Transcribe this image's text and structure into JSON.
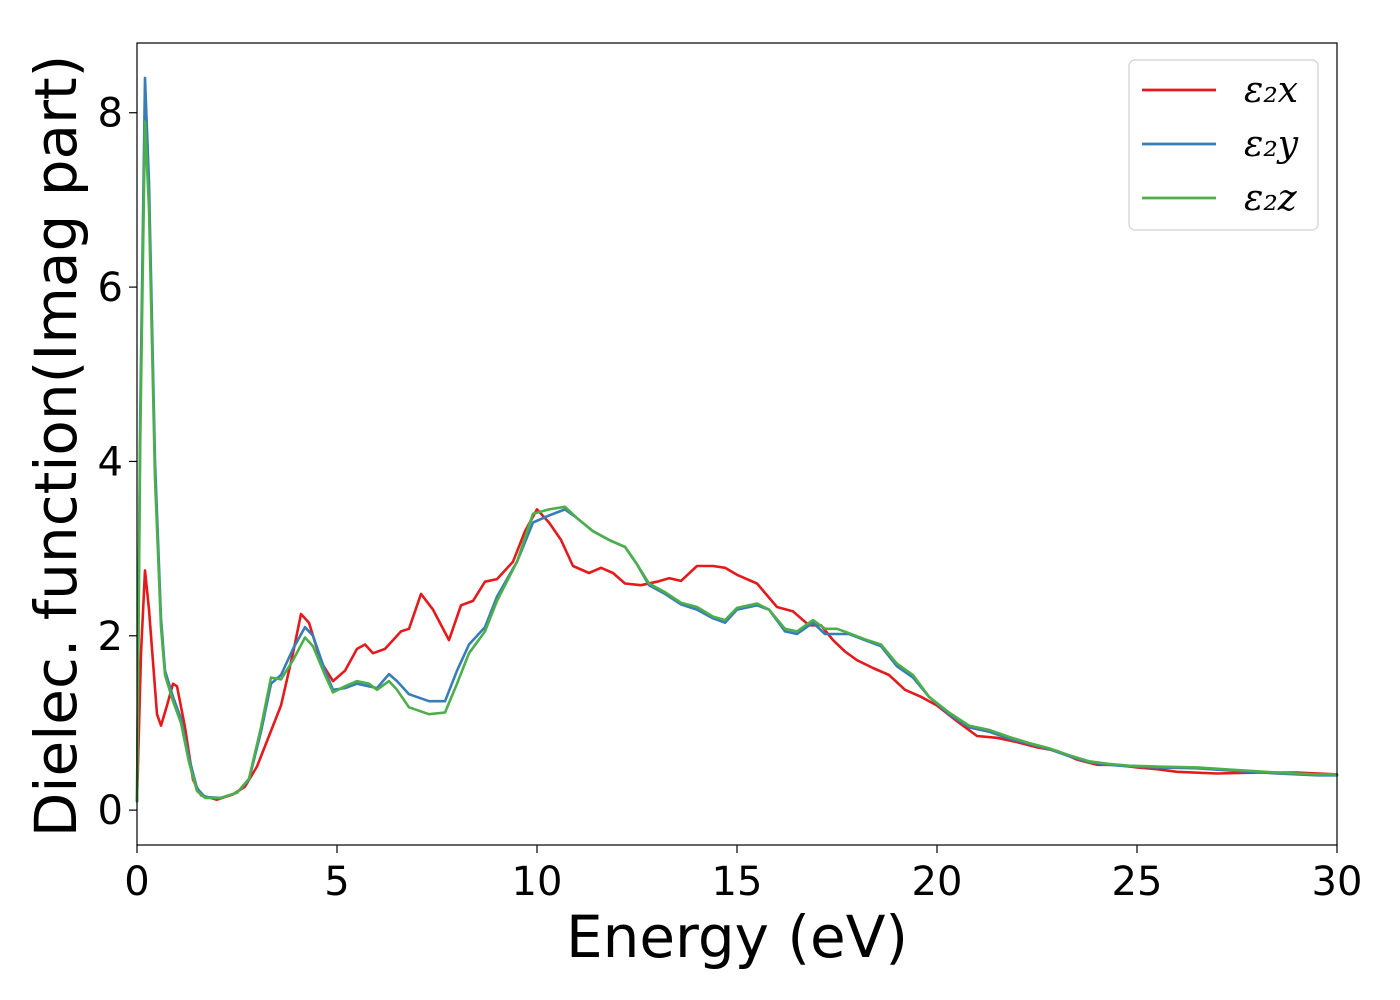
{
  "chart_data": {
    "type": "line",
    "xlabel": "Energy (eV)",
    "ylabel": "Dielec. function(Imag part)",
    "xlim": [
      0,
      30
    ],
    "ylim": [
      -0.4,
      8.8
    ],
    "xticks": [
      "0",
      "5",
      "10",
      "15",
      "20",
      "25",
      "30"
    ],
    "yticks": [
      "0",
      "2",
      "4",
      "6",
      "8"
    ],
    "grid": false,
    "legend_position": "top-right",
    "series": [
      {
        "name": "ε₂x",
        "color": "#e41a1c",
        "points": [
          [
            0,
            0.1
          ],
          [
            0.1,
            1.8
          ],
          [
            0.2,
            2.75
          ],
          [
            0.3,
            2.3
          ],
          [
            0.5,
            1.1
          ],
          [
            0.6,
            0.97
          ],
          [
            0.75,
            1.2
          ],
          [
            0.9,
            1.45
          ],
          [
            1.0,
            1.42
          ],
          [
            1.2,
            0.95
          ],
          [
            1.4,
            0.35
          ],
          [
            1.6,
            0.17
          ],
          [
            2.0,
            0.12
          ],
          [
            2.4,
            0.18
          ],
          [
            2.7,
            0.27
          ],
          [
            3.0,
            0.5
          ],
          [
            3.3,
            0.85
          ],
          [
            3.6,
            1.2
          ],
          [
            3.9,
            1.8
          ],
          [
            4.1,
            2.25
          ],
          [
            4.3,
            2.15
          ],
          [
            4.6,
            1.7
          ],
          [
            4.9,
            1.48
          ],
          [
            5.2,
            1.6
          ],
          [
            5.5,
            1.85
          ],
          [
            5.7,
            1.9
          ],
          [
            5.9,
            1.8
          ],
          [
            6.2,
            1.85
          ],
          [
            6.6,
            2.05
          ],
          [
            6.8,
            2.08
          ],
          [
            7.1,
            2.48
          ],
          [
            7.4,
            2.3
          ],
          [
            7.8,
            1.95
          ],
          [
            8.1,
            2.35
          ],
          [
            8.4,
            2.4
          ],
          [
            8.7,
            2.62
          ],
          [
            9.0,
            2.65
          ],
          [
            9.4,
            2.85
          ],
          [
            9.7,
            3.2
          ],
          [
            10.0,
            3.45
          ],
          [
            10.3,
            3.3
          ],
          [
            10.6,
            3.1
          ],
          [
            10.9,
            2.8
          ],
          [
            11.3,
            2.72
          ],
          [
            11.6,
            2.78
          ],
          [
            11.9,
            2.72
          ],
          [
            12.2,
            2.6
          ],
          [
            12.6,
            2.58
          ],
          [
            13.0,
            2.62
          ],
          [
            13.3,
            2.66
          ],
          [
            13.6,
            2.63
          ],
          [
            14.0,
            2.8
          ],
          [
            14.4,
            2.8
          ],
          [
            14.7,
            2.78
          ],
          [
            15.0,
            2.7
          ],
          [
            15.5,
            2.6
          ],
          [
            16.0,
            2.33
          ],
          [
            16.4,
            2.28
          ],
          [
            16.8,
            2.12
          ],
          [
            17.1,
            2.12
          ],
          [
            17.4,
            1.95
          ],
          [
            17.7,
            1.82
          ],
          [
            18.0,
            1.72
          ],
          [
            18.4,
            1.63
          ],
          [
            18.8,
            1.55
          ],
          [
            19.2,
            1.38
          ],
          [
            19.6,
            1.3
          ],
          [
            20.0,
            1.2
          ],
          [
            20.5,
            1.02
          ],
          [
            21.0,
            0.85
          ],
          [
            21.5,
            0.83
          ],
          [
            22.0,
            0.78
          ],
          [
            22.5,
            0.72
          ],
          [
            23.0,
            0.68
          ],
          [
            23.5,
            0.58
          ],
          [
            24.0,
            0.52
          ],
          [
            24.5,
            0.52
          ],
          [
            25.0,
            0.49
          ],
          [
            25.5,
            0.47
          ],
          [
            26.0,
            0.44
          ],
          [
            27.0,
            0.42
          ],
          [
            28.0,
            0.43
          ],
          [
            29.0,
            0.43
          ],
          [
            30.0,
            0.41
          ]
        ]
      },
      {
        "name": "ε₂y",
        "color": "#377eb8",
        "points": [
          [
            0,
            0.1
          ],
          [
            0.08,
            4.5
          ],
          [
            0.2,
            8.4
          ],
          [
            0.3,
            7.2
          ],
          [
            0.45,
            4.0
          ],
          [
            0.6,
            2.2
          ],
          [
            0.7,
            1.6
          ],
          [
            0.9,
            1.3
          ],
          [
            1.1,
            1.05
          ],
          [
            1.3,
            0.6
          ],
          [
            1.5,
            0.25
          ],
          [
            1.7,
            0.15
          ],
          [
            2.1,
            0.14
          ],
          [
            2.5,
            0.2
          ],
          [
            2.8,
            0.35
          ],
          [
            3.1,
            0.9
          ],
          [
            3.35,
            1.45
          ],
          [
            3.6,
            1.55
          ],
          [
            3.9,
            1.85
          ],
          [
            4.2,
            2.1
          ],
          [
            4.4,
            2.0
          ],
          [
            4.7,
            1.6
          ],
          [
            4.9,
            1.38
          ],
          [
            5.2,
            1.4
          ],
          [
            5.5,
            1.45
          ],
          [
            5.8,
            1.42
          ],
          [
            6.0,
            1.4
          ],
          [
            6.3,
            1.56
          ],
          [
            6.5,
            1.48
          ],
          [
            6.8,
            1.33
          ],
          [
            7.3,
            1.25
          ],
          [
            7.7,
            1.25
          ],
          [
            8.0,
            1.6
          ],
          [
            8.3,
            1.9
          ],
          [
            8.7,
            2.1
          ],
          [
            9.0,
            2.45
          ],
          [
            9.5,
            2.85
          ],
          [
            9.9,
            3.3
          ],
          [
            10.3,
            3.38
          ],
          [
            10.7,
            3.45
          ],
          [
            11.0,
            3.35
          ],
          [
            11.4,
            3.2
          ],
          [
            11.8,
            3.1
          ],
          [
            12.2,
            3.02
          ],
          [
            12.5,
            2.82
          ],
          [
            12.8,
            2.58
          ],
          [
            13.2,
            2.48
          ],
          [
            13.6,
            2.36
          ],
          [
            14.0,
            2.3
          ],
          [
            14.4,
            2.2
          ],
          [
            14.7,
            2.15
          ],
          [
            15.0,
            2.3
          ],
          [
            15.5,
            2.35
          ],
          [
            15.8,
            2.3
          ],
          [
            16.2,
            2.05
          ],
          [
            16.5,
            2.02
          ],
          [
            16.9,
            2.15
          ],
          [
            17.2,
            2.02
          ],
          [
            17.5,
            2.02
          ],
          [
            17.8,
            2.02
          ],
          [
            18.2,
            1.95
          ],
          [
            18.6,
            1.88
          ],
          [
            19.0,
            1.65
          ],
          [
            19.4,
            1.52
          ],
          [
            19.8,
            1.3
          ],
          [
            20.3,
            1.1
          ],
          [
            20.8,
            0.95
          ],
          [
            21.3,
            0.9
          ],
          [
            21.8,
            0.82
          ],
          [
            22.3,
            0.76
          ],
          [
            22.8,
            0.7
          ],
          [
            23.3,
            0.62
          ],
          [
            23.8,
            0.55
          ],
          [
            24.3,
            0.52
          ],
          [
            24.8,
            0.5
          ],
          [
            25.5,
            0.49
          ],
          [
            26.5,
            0.48
          ],
          [
            27.5,
            0.45
          ],
          [
            28.5,
            0.42
          ],
          [
            29.5,
            0.4
          ],
          [
            30.0,
            0.4
          ]
        ]
      },
      {
        "name": "ε₂z",
        "color": "#4daf4a",
        "points": [
          [
            0,
            0.1
          ],
          [
            0.08,
            4.2
          ],
          [
            0.2,
            7.9
          ],
          [
            0.3,
            6.9
          ],
          [
            0.45,
            3.8
          ],
          [
            0.6,
            2.1
          ],
          [
            0.7,
            1.55
          ],
          [
            0.9,
            1.25
          ],
          [
            1.1,
            1.0
          ],
          [
            1.3,
            0.55
          ],
          [
            1.5,
            0.22
          ],
          [
            1.7,
            0.14
          ],
          [
            2.1,
            0.14
          ],
          [
            2.5,
            0.2
          ],
          [
            2.8,
            0.36
          ],
          [
            3.1,
            0.95
          ],
          [
            3.35,
            1.52
          ],
          [
            3.6,
            1.5
          ],
          [
            3.9,
            1.72
          ],
          [
            4.2,
            1.98
          ],
          [
            4.4,
            1.88
          ],
          [
            4.7,
            1.55
          ],
          [
            4.9,
            1.35
          ],
          [
            5.2,
            1.42
          ],
          [
            5.5,
            1.48
          ],
          [
            5.8,
            1.45
          ],
          [
            6.0,
            1.38
          ],
          [
            6.3,
            1.48
          ],
          [
            6.5,
            1.38
          ],
          [
            6.8,
            1.18
          ],
          [
            7.3,
            1.1
          ],
          [
            7.7,
            1.12
          ],
          [
            8.0,
            1.45
          ],
          [
            8.3,
            1.8
          ],
          [
            8.7,
            2.05
          ],
          [
            9.0,
            2.4
          ],
          [
            9.5,
            2.85
          ],
          [
            9.9,
            3.4
          ],
          [
            10.3,
            3.45
          ],
          [
            10.7,
            3.48
          ],
          [
            11.0,
            3.35
          ],
          [
            11.4,
            3.2
          ],
          [
            11.8,
            3.1
          ],
          [
            12.2,
            3.02
          ],
          [
            12.5,
            2.82
          ],
          [
            12.8,
            2.6
          ],
          [
            13.2,
            2.5
          ],
          [
            13.6,
            2.38
          ],
          [
            14.0,
            2.33
          ],
          [
            14.4,
            2.22
          ],
          [
            14.7,
            2.18
          ],
          [
            15.0,
            2.32
          ],
          [
            15.5,
            2.37
          ],
          [
            15.8,
            2.3
          ],
          [
            16.2,
            2.08
          ],
          [
            16.5,
            2.05
          ],
          [
            16.9,
            2.18
          ],
          [
            17.2,
            2.08
          ],
          [
            17.5,
            2.08
          ],
          [
            17.8,
            2.03
          ],
          [
            18.2,
            1.96
          ],
          [
            18.6,
            1.9
          ],
          [
            19.0,
            1.68
          ],
          [
            19.4,
            1.55
          ],
          [
            19.8,
            1.3
          ],
          [
            20.3,
            1.12
          ],
          [
            20.8,
            0.97
          ],
          [
            21.3,
            0.92
          ],
          [
            21.8,
            0.84
          ],
          [
            22.3,
            0.77
          ],
          [
            22.8,
            0.71
          ],
          [
            23.3,
            0.63
          ],
          [
            23.8,
            0.56
          ],
          [
            24.3,
            0.53
          ],
          [
            24.8,
            0.51
          ],
          [
            25.5,
            0.5
          ],
          [
            26.5,
            0.49
          ],
          [
            27.5,
            0.46
          ],
          [
            28.5,
            0.43
          ],
          [
            29.5,
            0.41
          ],
          [
            30.0,
            0.41
          ]
        ]
      }
    ]
  }
}
